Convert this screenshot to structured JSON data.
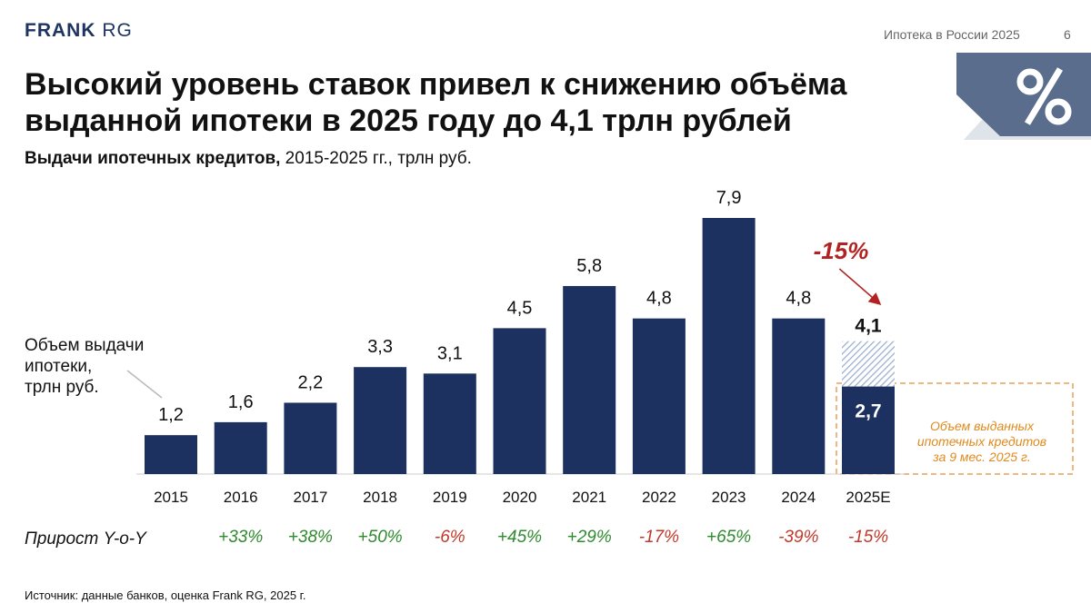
{
  "header": {
    "logo_bold": "FRANK",
    "logo_light": "RG",
    "report_name": "Ипотека в России 2025",
    "page_number": "6",
    "badge_icon": "percent-icon"
  },
  "title": "Высокий уровень ставок привел к снижению объёма выданной ипотеки в 2025 году до 4,1 трлн рублей",
  "subtitle_bold": "Выдачи ипотечных кредитов,",
  "subtitle_rest": " 2015-2025 гг., трлн руб.",
  "source": "Источник: данные банков, оценка Frank RG, 2025 г.",
  "chart_data": {
    "type": "bar",
    "categories": [
      "2015",
      "2016",
      "2017",
      "2018",
      "2019",
      "2020",
      "2021",
      "2022",
      "2023",
      "2024",
      "2025E"
    ],
    "values": [
      1.2,
      1.6,
      2.2,
      3.3,
      3.1,
      4.5,
      5.8,
      4.8,
      7.9,
      4.8,
      4.1
    ],
    "value_labels": [
      "1,2",
      "1,6",
      "2,2",
      "3,3",
      "3,1",
      "4,5",
      "5,8",
      "4,8",
      "7,9",
      "4,8",
      "4,1"
    ],
    "partial_2025": {
      "value": 2.7,
      "label": "2,7"
    },
    "ylim": [
      0,
      8.5
    ],
    "grid": false,
    "growth_label": "Прирост Y-o-Y",
    "growth": [
      "+33%",
      "+38%",
      "+50%",
      "-6%",
      "+45%",
      "+29%",
      "-17%",
      "+65%",
      "-39%",
      "-15%"
    ],
    "y_annotation": [
      "Объем выдачи",
      "ипотеки,",
      "трлн руб."
    ],
    "decline_annotation": "-15%",
    "partial_annotation": [
      "Объем выданных",
      "ипотечных кредитов",
      "за 9 мес. 2025 г."
    ],
    "colors": {
      "bar": "#1c3160",
      "positive": "#2e8b2e",
      "negative": "#c0392b",
      "decline": "#b22222",
      "annotation_box": "#e8a15a",
      "annotation_text": "#e08a1e"
    }
  }
}
